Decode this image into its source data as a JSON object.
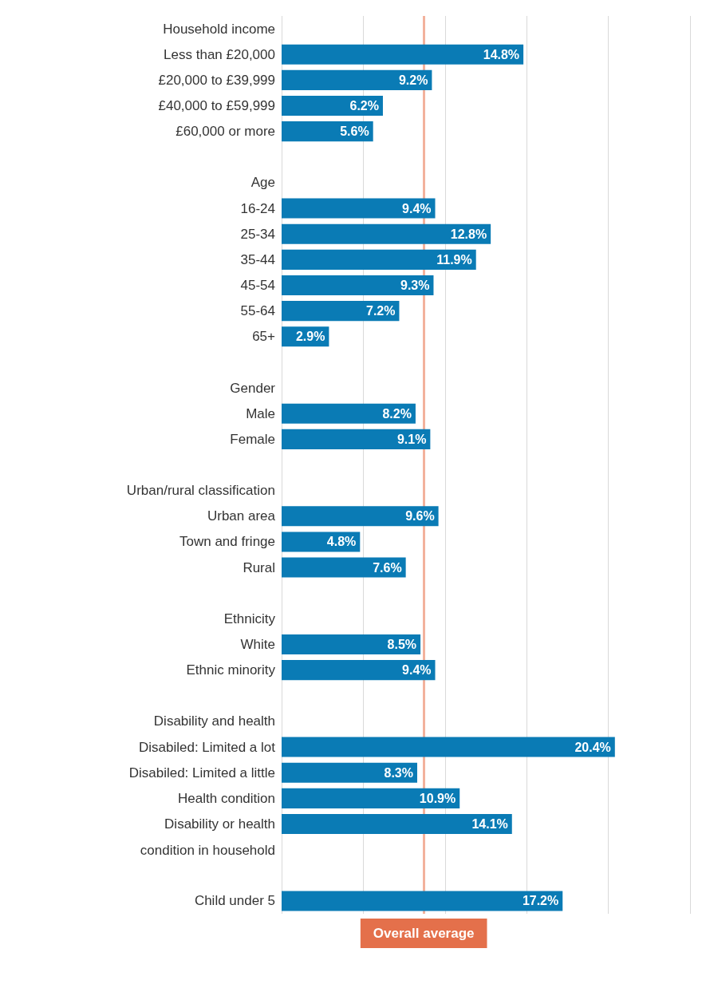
{
  "chart_data": {
    "type": "bar",
    "orientation": "horizontal",
    "categories": [
      "Household income",
      "Less than £20,000",
      "£20,000 to £39,999",
      "£40,000 to £59,999",
      "£60,000 or more",
      null,
      "Age",
      "16-24",
      "25-34",
      "35-44",
      "45-54",
      "55-64",
      "65+",
      null,
      "Gender",
      "Male",
      "Female",
      null,
      "Urban/rural classification",
      "Urban area",
      "Town and fringe",
      "Rural",
      null,
      "Ethnicity",
      "White",
      "Ethnic minority",
      null,
      "Disability and health",
      "Disabiled: Limited a lot",
      "Disabiled: Limited a little",
      "Health condition",
      "Disability or health\ncondition in household",
      null,
      null,
      "Child under 5"
    ],
    "values": [
      null,
      14.8,
      9.2,
      6.2,
      5.6,
      null,
      null,
      9.4,
      12.8,
      11.9,
      9.3,
      7.2,
      2.9,
      null,
      null,
      8.2,
      9.1,
      null,
      null,
      9.6,
      4.8,
      7.6,
      null,
      null,
      8.5,
      9.4,
      null,
      null,
      20.4,
      8.3,
      10.9,
      14.1,
      null,
      null,
      17.2
    ],
    "value_labels": [
      null,
      "14.8%",
      "9.2%",
      "6.2%",
      "5.6%",
      null,
      null,
      "9.4%",
      "12.8%",
      "11.9%",
      "9.3%",
      "7.2%",
      "2.9%",
      null,
      null,
      "8.2%",
      "9.1%",
      null,
      null,
      "9.6%",
      "4.8%",
      "7.6%",
      null,
      null,
      "8.5%",
      "9.4%",
      null,
      null,
      "20.4%",
      "8.3%",
      "10.9%",
      "14.1%",
      null,
      null,
      "17.2%"
    ],
    "color": "#0a7bb5",
    "xlim": [
      0,
      25
    ],
    "xticks": [
      0,
      5,
      10,
      15,
      20,
      25
    ],
    "tick_labels": "y",
    "grid": "x",
    "ref_lines": [
      {
        "axis": "x",
        "value": 8.7,
        "label": "Overall average",
        "color": "#f2b29c"
      }
    ]
  }
}
